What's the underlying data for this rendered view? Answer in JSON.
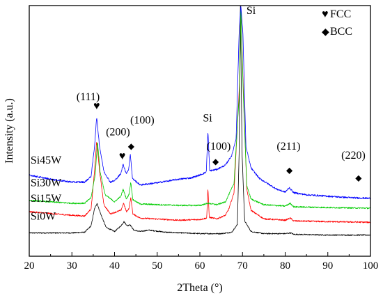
{
  "chart_data": {
    "type": "line",
    "title": "",
    "xlabel": "2Theta (°)",
    "ylabel": "Intensity (a.u.)",
    "xlim": [
      20,
      100
    ],
    "xticks": [
      20,
      30,
      40,
      50,
      60,
      70,
      80,
      90,
      100
    ],
    "y_ticks_shown": false,
    "grid": false,
    "legend_position": "top-right",
    "legend": [
      {
        "symbol": "♥",
        "label": "FCC"
      },
      {
        "symbol": "◆",
        "label": "BCC"
      }
    ],
    "series": [
      {
        "name": "Si45W",
        "color": "#0000ff",
        "baseline": 0.62,
        "noise": 0.012,
        "points": [
          [
            20,
            0.9
          ],
          [
            25,
            0.84
          ],
          [
            30,
            0.8
          ],
          [
            33,
            0.8
          ],
          [
            34.5,
            0.88
          ],
          [
            35.3,
            1.3
          ],
          [
            35.8,
            1.72
          ],
          [
            36.5,
            1.3
          ],
          [
            37.5,
            0.95
          ],
          [
            39,
            0.8
          ],
          [
            40,
            0.82
          ],
          [
            41.5,
            0.92
          ],
          [
            42,
            1.06
          ],
          [
            42.7,
            0.92
          ],
          [
            43.3,
            0.98
          ],
          [
            43.7,
            1.2
          ],
          [
            44.2,
            0.85
          ],
          [
            46,
            0.76
          ],
          [
            50,
            0.79
          ],
          [
            55,
            0.84
          ],
          [
            58,
            0.86
          ],
          [
            60,
            0.9
          ],
          [
            61.5,
            0.94
          ],
          [
            61.9,
            1.52
          ],
          [
            62.3,
            0.96
          ],
          [
            64,
            0.98
          ],
          [
            66,
            1.04
          ],
          [
            67.5,
            1.18
          ],
          [
            68.5,
            1.42
          ],
          [
            69.2,
            2.9
          ],
          [
            69.6,
            3.3
          ],
          [
            70.1,
            2.9
          ],
          [
            70.8,
            1.3
          ],
          [
            72,
            1.0
          ],
          [
            74,
            0.85
          ],
          [
            78,
            0.7
          ],
          [
            80,
            0.66
          ],
          [
            81,
            0.72
          ],
          [
            82,
            0.65
          ],
          [
            85,
            0.62
          ],
          [
            90,
            0.6
          ],
          [
            95,
            0.58
          ],
          [
            100,
            0.57
          ]
        ]
      },
      {
        "name": "Si30W",
        "color": "#00cc00",
        "baseline": 0.44,
        "noise": 0.01,
        "points": [
          [
            20,
            0.54
          ],
          [
            30,
            0.5
          ],
          [
            33,
            0.5
          ],
          [
            34.5,
            0.58
          ],
          [
            35.5,
            0.92
          ],
          [
            36,
            1.38
          ],
          [
            36.6,
            0.95
          ],
          [
            37.8,
            0.62
          ],
          [
            40,
            0.52
          ],
          [
            41.5,
            0.6
          ],
          [
            42,
            0.7
          ],
          [
            42.8,
            0.56
          ],
          [
            43.4,
            0.63
          ],
          [
            43.8,
            0.8
          ],
          [
            44.3,
            0.55
          ],
          [
            46,
            0.49
          ],
          [
            55,
            0.47
          ],
          [
            60,
            0.47
          ],
          [
            61.9,
            0.5
          ],
          [
            64,
            0.48
          ],
          [
            66,
            0.52
          ],
          [
            68,
            0.78
          ],
          [
            69.3,
            2.1
          ],
          [
            69.6,
            3.3
          ],
          [
            70.2,
            2.0
          ],
          [
            71,
            0.75
          ],
          [
            72,
            0.56
          ],
          [
            75,
            0.48
          ],
          [
            80,
            0.46
          ],
          [
            81.2,
            0.5
          ],
          [
            82,
            0.45
          ],
          [
            90,
            0.44
          ],
          [
            100,
            0.43
          ]
        ]
      },
      {
        "name": "Si15W",
        "color": "#ff0000",
        "baseline": 0.24,
        "noise": 0.01,
        "points": [
          [
            20,
            0.38
          ],
          [
            30,
            0.33
          ],
          [
            33,
            0.32
          ],
          [
            34.5,
            0.42
          ],
          [
            35.3,
            0.95
          ],
          [
            35.8,
            1.38
          ],
          [
            36.5,
            0.95
          ],
          [
            37.5,
            0.48
          ],
          [
            39,
            0.35
          ],
          [
            41.5,
            0.4
          ],
          [
            42.1,
            0.5
          ],
          [
            42.8,
            0.38
          ],
          [
            43.4,
            0.43
          ],
          [
            43.8,
            0.58
          ],
          [
            44.3,
            0.35
          ],
          [
            46,
            0.29
          ],
          [
            55,
            0.26
          ],
          [
            60,
            0.27
          ],
          [
            61.6,
            0.29
          ],
          [
            61.9,
            0.72
          ],
          [
            62.2,
            0.3
          ],
          [
            64,
            0.28
          ],
          [
            66,
            0.33
          ],
          [
            66.8,
            0.42
          ],
          [
            68,
            0.65
          ],
          [
            69.3,
            2.2
          ],
          [
            69.6,
            3.3
          ],
          [
            70.2,
            2.1
          ],
          [
            71,
            0.7
          ],
          [
            72,
            0.4
          ],
          [
            75,
            0.28
          ],
          [
            80,
            0.26
          ],
          [
            81.2,
            0.29
          ],
          [
            82,
            0.25
          ],
          [
            90,
            0.24
          ],
          [
            100,
            0.23
          ]
        ]
      },
      {
        "name": "Si0W",
        "color": "#000000",
        "baseline": 0.05,
        "noise": 0.008,
        "points": [
          [
            20,
            0.08
          ],
          [
            30,
            0.08
          ],
          [
            33,
            0.09
          ],
          [
            34.5,
            0.18
          ],
          [
            35.3,
            0.42
          ],
          [
            35.9,
            0.5
          ],
          [
            36.8,
            0.34
          ],
          [
            38,
            0.16
          ],
          [
            40,
            0.1
          ],
          [
            41.5,
            0.18
          ],
          [
            42.2,
            0.24
          ],
          [
            43,
            0.18
          ],
          [
            43.6,
            0.2
          ],
          [
            44.5,
            0.12
          ],
          [
            46,
            0.1
          ],
          [
            48,
            0.12
          ],
          [
            52,
            0.09
          ],
          [
            60,
            0.07
          ],
          [
            65,
            0.07
          ],
          [
            67.5,
            0.09
          ],
          [
            68.8,
            0.2
          ],
          [
            69.2,
            1.2
          ],
          [
            69.5,
            3.3
          ],
          [
            69.9,
            1.2
          ],
          [
            70.5,
            0.25
          ],
          [
            72,
            0.1
          ],
          [
            75,
            0.07
          ],
          [
            80,
            0.07
          ],
          [
            81.3,
            0.08
          ],
          [
            82,
            0.06
          ],
          [
            90,
            0.05
          ],
          [
            100,
            0.05
          ]
        ]
      }
    ],
    "series_labels": [
      {
        "text": "Si45W",
        "x": 20.3,
        "y": 1.06
      },
      {
        "text": "Si30W",
        "x": 20.3,
        "y": 0.74
      },
      {
        "text": "Si15W",
        "x": 20.3,
        "y": 0.52
      },
      {
        "text": "Si0W",
        "x": 20.3,
        "y": 0.27
      }
    ],
    "peak_labels": [
      {
        "text": "(111)",
        "x": 33.8,
        "y": 1.96
      },
      {
        "text": "(200)",
        "x": 40.8,
        "y": 1.46
      },
      {
        "text": "(100)",
        "x": 46.5,
        "y": 1.63
      },
      {
        "text": "Si",
        "x": 61.8,
        "y": 1.66
      },
      {
        "text": "(100)",
        "x": 64.4,
        "y": 1.26
      },
      {
        "text": "Si",
        "x": 72.0,
        "y": 3.18
      },
      {
        "text": "(211)",
        "x": 80.8,
        "y": 1.26
      },
      {
        "text": "(220)",
        "x": 96.0,
        "y": 1.13
      }
    ],
    "peak_markers": [
      {
        "symbol": "♥",
        "x": 35.8,
        "y": 1.83
      },
      {
        "symbol": "♥",
        "x": 41.8,
        "y": 1.12
      },
      {
        "symbol": "◆",
        "x": 43.9,
        "y": 1.27
      },
      {
        "symbol": "◆",
        "x": 63.7,
        "y": 1.05
      },
      {
        "symbol": "◆",
        "x": 81.0,
        "y": 0.93
      },
      {
        "symbol": "◆",
        "x": 97.2,
        "y": 0.82
      }
    ],
    "ylim": [
      -0.25,
      3.3
    ]
  }
}
